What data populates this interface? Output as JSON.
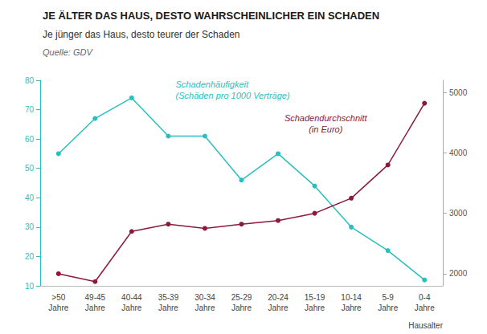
{
  "chart_data": {
    "type": "line",
    "title": "JE ÄLTER DAS HAUS, DESTO WAHRSCHEINLICHER EIN SCHADEN",
    "subtitle": "Je jünger das Haus, desto teurer der Schaden",
    "source": "Quelle: GDV",
    "xlabel": "Hausalter",
    "categories": [
      ">50\nJahre",
      "49-45\nJahre",
      "40-44\nJahre",
      "35-39\nJahre",
      "30-34\nJahre",
      "25-29\nJahre",
      "20-24\nJahre",
      "15-19\nJahre",
      "10-14\nJahre",
      "5-9\nJahre",
      "0-4\nJahre"
    ],
    "series": [
      {
        "color": "#29BFBF",
        "marker": "circle",
        "values": [
          55,
          67,
          74,
          61,
          61,
          46,
          55,
          44,
          30,
          22,
          12
        ]
      },
      {
        "color": "#8B1A3A",
        "marker": "circle",
        "axis": "y2",
        "values": [
          2000,
          1870,
          2700,
          2820,
          2750,
          2820,
          2880,
          3000,
          3250,
          3800,
          4820
        ]
      }
    ],
    "ylim": [
      10,
      80
    ],
    "yticks": [
      10,
      20,
      30,
      40,
      50,
      60,
      70,
      80
    ],
    "y2lim": [
      1800,
      5200
    ],
    "y2ticks": [
      2000,
      3000,
      4000,
      5000
    ],
    "grid": false,
    "annotations": [
      {
        "text": "Schadenhäufigkeit\n(Schäden pro 1000 Verträge)",
        "color": "#29BFBF"
      },
      {
        "text": "Schadendurchschnitt\n(in Euro)",
        "color": "#8B1A3A"
      }
    ]
  }
}
